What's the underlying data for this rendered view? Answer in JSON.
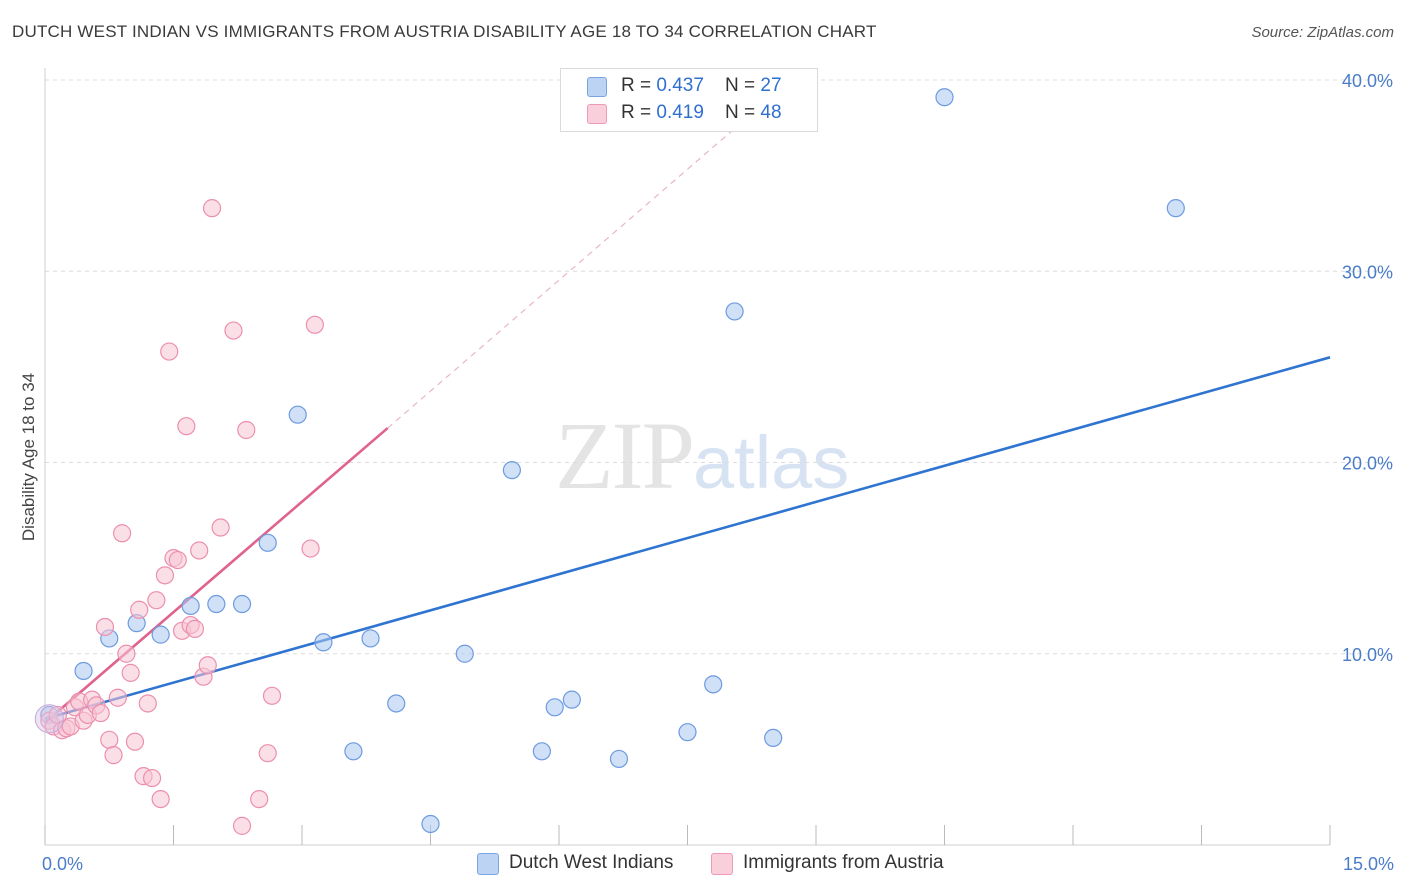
{
  "title": "DUTCH WEST INDIAN VS IMMIGRANTS FROM AUSTRIA DISABILITY AGE 18 TO 34 CORRELATION CHART",
  "source": "Source: ZipAtlas.com",
  "watermark": {
    "zip": "ZIP",
    "atlas": "atlas"
  },
  "legend": {
    "rows": [
      {
        "r_label": "R = ",
        "r_value": "0.437",
        "n_label": "N = ",
        "n_value": "27"
      },
      {
        "r_label": "R = ",
        "r_value": "0.419",
        "n_label": "N = ",
        "n_value": "48"
      }
    ]
  },
  "chart_data": {
    "type": "scatter",
    "title": "DUTCH WEST INDIAN VS IMMIGRANTS FROM AUSTRIA DISABILITY AGE 18 TO 34 CORRELATION CHART",
    "xlabel": "",
    "ylabel": "Disability Age 18 to 34",
    "xlim": [
      0,
      15
    ],
    "ylim": [
      0,
      40
    ],
    "x_tick_labels": [
      "0.0%",
      "15.0%"
    ],
    "y_ticks": [
      10,
      20,
      30,
      40
    ],
    "y_tick_labels": [
      "10.0%",
      "20.0%",
      "30.0%",
      "40.0%"
    ],
    "grid": true,
    "legend_position": "top-center",
    "series": [
      {
        "name": "Dutch West Indians",
        "color": "#a9c6ee",
        "edge": "#6d9be0",
        "line_color": "#2f74d0",
        "trend": {
          "x": [
            0,
            15
          ],
          "y": [
            6.6,
            25.5
          ]
        },
        "points": [
          [
            0.05,
            6.8
          ],
          [
            0.75,
            10.8
          ],
          [
            0.45,
            9.1
          ],
          [
            1.07,
            11.6
          ],
          [
            1.35,
            11.0
          ],
          [
            1.7,
            12.5
          ],
          [
            2.0,
            12.6
          ],
          [
            2.3,
            12.6
          ],
          [
            2.6,
            15.8
          ],
          [
            2.95,
            22.5
          ],
          [
            3.25,
            10.6
          ],
          [
            3.8,
            10.8
          ],
          [
            4.1,
            7.4
          ],
          [
            3.6,
            4.9
          ],
          [
            4.5,
            1.1
          ],
          [
            4.9,
            10.0
          ],
          [
            5.45,
            19.6
          ],
          [
            5.8,
            4.9
          ],
          [
            5.95,
            7.2
          ],
          [
            6.15,
            7.6
          ],
          [
            6.7,
            4.5
          ],
          [
            7.5,
            5.9
          ],
          [
            7.8,
            8.4
          ],
          [
            8.05,
            27.9
          ],
          [
            8.5,
            5.6
          ],
          [
            10.5,
            39.1
          ],
          [
            13.2,
            33.3
          ]
        ]
      },
      {
        "name": "Immigrants from Austria",
        "color": "#f7c4d3",
        "edge": "#ec8fae",
        "line_color": "#e0628e",
        "trend": {
          "x": [
            0,
            4.0
          ],
          "y": [
            6.4,
            21.8
          ]
        },
        "trend_extension": {
          "x": [
            4.0,
            8.5
          ],
          "y": [
            21.8,
            39.2
          ]
        },
        "points": [
          [
            0.05,
            6.5
          ],
          [
            0.1,
            6.2
          ],
          [
            0.15,
            6.8
          ],
          [
            0.2,
            6.0
          ],
          [
            0.25,
            6.1
          ],
          [
            0.3,
            6.2
          ],
          [
            0.35,
            7.2
          ],
          [
            0.4,
            7.5
          ],
          [
            0.45,
            6.5
          ],
          [
            0.5,
            6.8
          ],
          [
            0.55,
            7.6
          ],
          [
            0.6,
            7.3
          ],
          [
            0.65,
            6.9
          ],
          [
            0.7,
            11.4
          ],
          [
            0.75,
            5.5
          ],
          [
            0.8,
            4.7
          ],
          [
            0.85,
            7.7
          ],
          [
            0.9,
            16.3
          ],
          [
            0.95,
            10.0
          ],
          [
            1.0,
            9.0
          ],
          [
            1.05,
            5.4
          ],
          [
            1.1,
            12.3
          ],
          [
            1.15,
            3.6
          ],
          [
            1.2,
            7.4
          ],
          [
            1.25,
            3.5
          ],
          [
            1.3,
            12.8
          ],
          [
            1.35,
            2.4
          ],
          [
            1.4,
            14.1
          ],
          [
            1.45,
            25.8
          ],
          [
            1.5,
            15.0
          ],
          [
            1.55,
            14.9
          ],
          [
            1.6,
            11.2
          ],
          [
            1.65,
            21.9
          ],
          [
            1.7,
            11.5
          ],
          [
            1.75,
            11.3
          ],
          [
            1.8,
            15.4
          ],
          [
            1.85,
            8.8
          ],
          [
            1.9,
            9.4
          ],
          [
            1.95,
            33.3
          ],
          [
            2.05,
            16.6
          ],
          [
            2.2,
            26.9
          ],
          [
            2.3,
            1.0
          ],
          [
            2.35,
            21.7
          ],
          [
            2.5,
            2.4
          ],
          [
            2.6,
            4.8
          ],
          [
            2.65,
            7.8
          ],
          [
            3.1,
            15.5
          ],
          [
            3.15,
            27.2
          ]
        ]
      }
    ]
  }
}
